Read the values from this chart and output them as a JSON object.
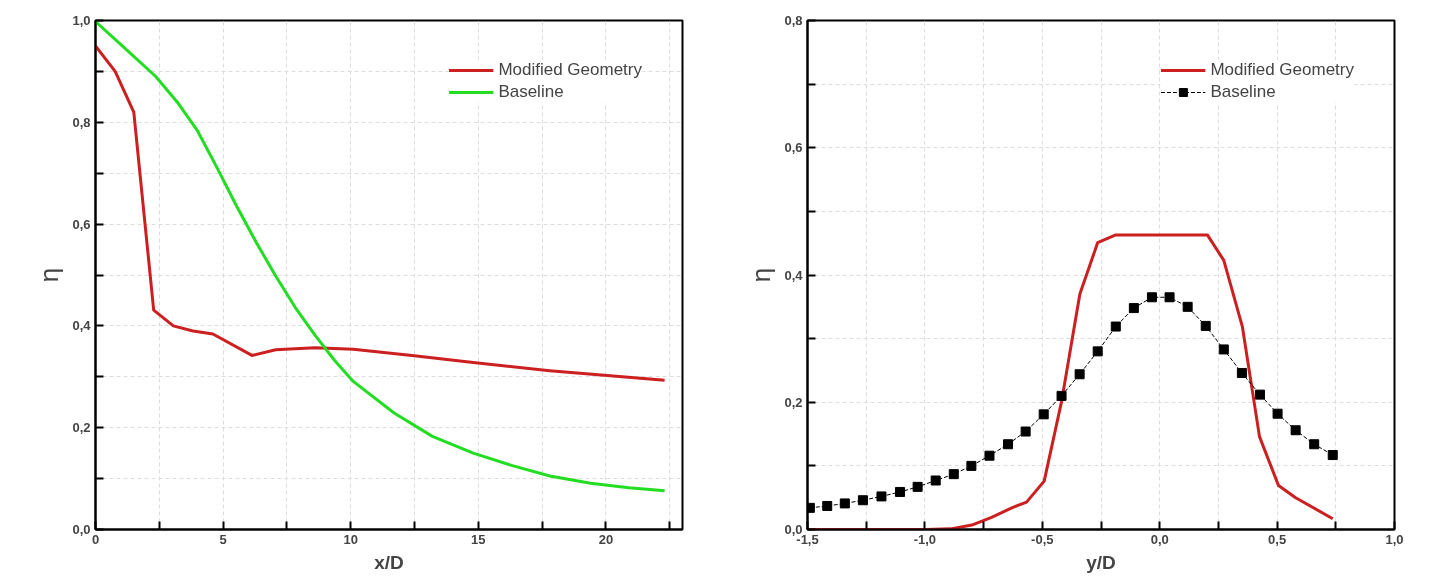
{
  "chart_data": [
    {
      "type": "line",
      "xlabel": "x/D",
      "ylabel": "η",
      "xlim": [
        0,
        23
      ],
      "ylim": [
        0,
        1
      ],
      "xticks": [
        0,
        {
          "value": 2.5,
          "label": null
        },
        5,
        {
          "value": 7.5,
          "label": null
        },
        10,
        {
          "value": 12.5,
          "label": null
        },
        15,
        {
          "value": 17.5,
          "label": null
        },
        20,
        {
          "value": 22.5,
          "label": null
        }
      ],
      "yticks": [
        {
          "value": 0,
          "label": "0,0"
        },
        {
          "value": 0.1,
          "label": null
        },
        {
          "value": 0.2,
          "label": "0,2"
        },
        {
          "value": 0.3,
          "label": null
        },
        {
          "value": 0.4,
          "label": "0,4"
        },
        {
          "value": 0.5,
          "label": null
        },
        {
          "value": 0.6,
          "label": "0,6"
        },
        {
          "value": 0.7,
          "label": null
        },
        {
          "value": 0.8,
          "label": "0,8"
        },
        {
          "value": 0.9,
          "label": null
        },
        {
          "value": 1.0,
          "label": "1,0"
        }
      ],
      "grid": true,
      "legend": "top right",
      "marker": "none",
      "series": [
        {
          "name": "Modified Geometry",
          "color": "#cc1f1f",
          "x": [
            0,
            0.77,
            1.5,
            2.28,
            3.05,
            3.82,
            4.6,
            6.13,
            7.06,
            8.6,
            10.1,
            12.4,
            14.8,
            17.8,
            22.3
          ],
          "values": [
            0.95,
            0.9,
            0.82,
            0.431,
            0.4,
            0.39,
            0.384,
            0.342,
            0.353,
            0.357,
            0.354,
            0.342,
            0.328,
            0.312,
            0.293
          ]
        },
        {
          "name": "Baseline",
          "color": "#22dd22",
          "x": [
            0,
            1.36,
            2.36,
            3.2,
            4.0,
            4.75,
            5.5,
            6.3,
            7.06,
            7.83,
            8.6,
            9.37,
            10.1,
            11.7,
            13.2,
            14.8,
            16.3,
            17.8,
            19.4,
            20.9,
            22.3
          ],
          "values": [
            0.998,
            0.936,
            0.89,
            0.84,
            0.783,
            0.712,
            0.638,
            0.564,
            0.498,
            0.436,
            0.382,
            0.332,
            0.291,
            0.229,
            0.183,
            0.15,
            0.126,
            0.105,
            0.091,
            0.082,
            0.076
          ]
        }
      ]
    },
    {
      "type": "line",
      "xlabel": "y/D",
      "ylabel": "η",
      "xlim": [
        -1.5,
        1.0
      ],
      "ylim": [
        0,
        0.8
      ],
      "xticks": [
        {
          "value": -1.5,
          "label": "-1,5"
        },
        {
          "value": -1.25,
          "label": null
        },
        {
          "value": -1.0,
          "label": "-1,0"
        },
        {
          "value": -0.75,
          "label": null
        },
        {
          "value": -0.5,
          "label": "-0,5"
        },
        {
          "value": -0.25,
          "label": null
        },
        {
          "value": 0,
          "label": "0,0"
        },
        {
          "value": 0.25,
          "label": null
        },
        {
          "value": 0.5,
          "label": "0,5"
        },
        {
          "value": 0.75,
          "label": null
        },
        {
          "value": 1.0,
          "label": "1,0"
        }
      ],
      "yticks": [
        {
          "value": 0,
          "label": "0,0"
        },
        {
          "value": 0.1,
          "label": null
        },
        {
          "value": 0.2,
          "label": "0,2"
        },
        {
          "value": 0.3,
          "label": null
        },
        {
          "value": 0.4,
          "label": "0,4"
        },
        {
          "value": 0.5,
          "label": null
        },
        {
          "value": 0.6,
          "label": "0,6"
        },
        {
          "value": 0.7,
          "label": null
        },
        {
          "value": 0.8,
          "label": "0,8"
        }
      ],
      "grid": true,
      "legend": "top right",
      "series": [
        {
          "name": "Modified Geometry",
          "color": "#cc1f1f",
          "marker": "none",
          "x": [
            -1.5,
            -0.996,
            -0.89,
            -0.8,
            -0.716,
            -0.63,
            -0.567,
            -0.492,
            -0.418,
            -0.34,
            -0.264,
            -0.187,
            0.203,
            0.273,
            0.352,
            0.425,
            0.506,
            0.579,
            0.737
          ],
          "values": [
            0,
            0,
            0.001,
            0.007,
            0.019,
            0.034,
            0.043,
            0.076,
            0.201,
            0.37,
            0.451,
            0.463,
            0.463,
            0.423,
            0.319,
            0.146,
            0.069,
            0.05,
            0.017
          ]
        },
        {
          "name": "Baseline",
          "color": "#000000",
          "marker": "square",
          "line_style": "dashed",
          "x": [
            -1.49,
            -1.416,
            -1.341,
            -1.264,
            -1.185,
            -1.106,
            -1.031,
            -0.954,
            -0.877,
            -0.802,
            -0.725,
            -0.646,
            -0.571,
            -0.494,
            -0.418,
            -0.341,
            -0.264,
            -0.187,
            -0.11,
            -0.033,
            0.042,
            0.119,
            0.196,
            0.273,
            0.35,
            0.427,
            0.502,
            0.579,
            0.658,
            0.737
          ],
          "values": [
            0.034,
            0.037,
            0.041,
            0.046,
            0.052,
            0.059,
            0.067,
            0.077,
            0.087,
            0.1,
            0.116,
            0.134,
            0.154,
            0.181,
            0.21,
            0.244,
            0.28,
            0.319,
            0.348,
            0.365,
            0.365,
            0.35,
            0.32,
            0.283,
            0.246,
            0.212,
            0.182,
            0.156,
            0.134,
            0.117
          ]
        }
      ]
    }
  ]
}
